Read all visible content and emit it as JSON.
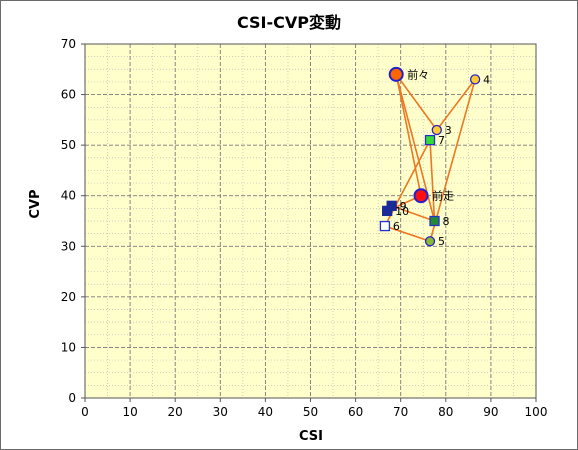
{
  "chart_data": {
    "type": "scatter",
    "title": "CSI-CVP変動",
    "xlabel": "CSI",
    "ylabel": "CVP",
    "xlim": [
      0,
      100
    ],
    "ylim": [
      0,
      70
    ],
    "x_ticks": [
      0,
      10,
      20,
      30,
      40,
      50,
      60,
      70,
      80,
      90,
      100
    ],
    "y_ticks": [
      0,
      10,
      20,
      30,
      40,
      50,
      60,
      70
    ],
    "grid": true,
    "legend": "none",
    "plot_background": "#ffffcc",
    "line_color": "#ee7722",
    "points": [
      {
        "label": "前々",
        "x": 69,
        "y": 64,
        "marker": "circle",
        "fill": "#ff6600",
        "stroke": "#2222cc",
        "size": "large"
      },
      {
        "label": "3",
        "x": 78,
        "y": 53,
        "marker": "circle",
        "fill": "#ffcc33",
        "stroke": "#2222cc",
        "size": "small"
      },
      {
        "label": "4",
        "x": 86.5,
        "y": 63,
        "marker": "circle",
        "fill": "#ffcc33",
        "stroke": "#2222cc",
        "size": "small"
      },
      {
        "label": "5",
        "x": 76.5,
        "y": 31,
        "marker": "circle",
        "fill": "#88bb33",
        "stroke": "#2222cc",
        "size": "small"
      },
      {
        "label": "6",
        "x": 66.5,
        "y": 34,
        "marker": "square",
        "fill": "#ffffff",
        "stroke": "#2233cc",
        "size": "small"
      },
      {
        "label": "7",
        "x": 76.5,
        "y": 51,
        "marker": "square",
        "fill": "#33dd33",
        "stroke": "#2233cc",
        "size": "small"
      },
      {
        "label": "8",
        "x": 77.5,
        "y": 35,
        "marker": "square",
        "fill": "#228833",
        "stroke": "#2233cc",
        "size": "small"
      },
      {
        "label": "9",
        "x": 68,
        "y": 38,
        "marker": "square",
        "fill": "#1a2a99",
        "stroke": "#1a2a99",
        "size": "small"
      },
      {
        "label": "10",
        "x": 67,
        "y": 37,
        "marker": "square",
        "fill": "#1a2a99",
        "stroke": "#1a2a99",
        "size": "small"
      },
      {
        "label": "前走",
        "x": 74.5,
        "y": 40,
        "marker": "circle",
        "fill": "#ff1111",
        "stroke": "#2222cc",
        "size": "large"
      }
    ],
    "connections": [
      [
        "前々",
        "3"
      ],
      [
        "3",
        "4"
      ],
      [
        "4",
        "5"
      ],
      [
        "5",
        "6"
      ],
      [
        "6",
        "7"
      ],
      [
        "7",
        "8"
      ],
      [
        "8",
        "9"
      ],
      [
        "9",
        "10"
      ],
      [
        "10",
        "前走"
      ],
      [
        "前走",
        "前々"
      ],
      [
        "前々",
        "8"
      ]
    ]
  }
}
